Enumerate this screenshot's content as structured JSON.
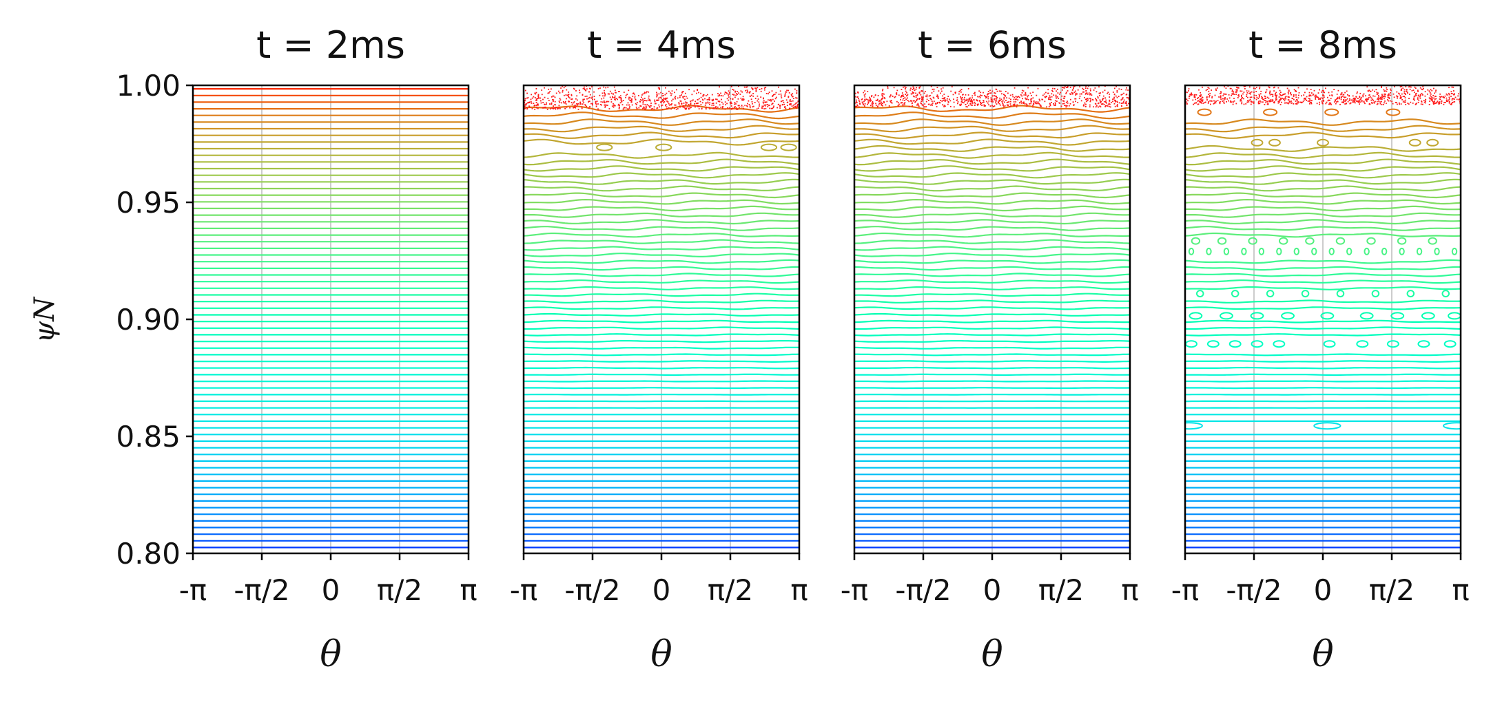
{
  "chart_data": {
    "type": "poincare",
    "ylabel": "ψN",
    "ylim": [
      0.8,
      1.0
    ],
    "yticks": [
      "0.80",
      "0.85",
      "0.90",
      "0.95",
      "1.00"
    ],
    "xlabel": "θ",
    "xticks": [
      "-π",
      "-π/2",
      "0",
      "π/2",
      "π"
    ],
    "colormap": "rainbow",
    "grid": "vertical",
    "grid_color": "#cccccc",
    "panels": [
      {
        "title": "t = 2ms",
        "surfaces": 70,
        "chaos_above": null,
        "islands": []
      },
      {
        "title": "t = 4ms",
        "surfaces": 70,
        "chaos_above": 0.99,
        "islands": [
          {
            "psi": 0.9735,
            "thetas": [
              -1.3,
              0.05,
              2.45,
              2.9
            ],
            "width": 0.35
          }
        ]
      },
      {
        "title": "t = 6ms",
        "surfaces": 70,
        "chaos_above": 0.991,
        "islands": []
      },
      {
        "title": "t = 8ms",
        "surfaces": 70,
        "chaos_above": 0.992,
        "islands": [
          {
            "psi": 0.9885,
            "thetas": [
              -2.7,
              -1.2,
              0.2,
              1.6
            ],
            "width": 0.3
          },
          {
            "psi": 0.9755,
            "thetas": [
              -1.5,
              -1.1,
              0.0,
              2.1,
              2.5
            ],
            "width": 0.25
          },
          {
            "psi": 0.9335,
            "thetas": [
              -2.9,
              -2.3,
              -1.6,
              -0.9,
              -0.3,
              0.4,
              1.1,
              1.8,
              2.5
            ],
            "width": 0.18
          },
          {
            "psi": 0.929,
            "thetas": [
              -3.0,
              -2.6,
              -2.2,
              -1.8,
              -1.4,
              -1.0,
              -0.6,
              -0.2,
              0.2,
              0.6,
              1.0,
              1.4,
              1.8,
              2.2,
              2.6,
              3.0
            ],
            "width": 0.1
          },
          {
            "psi": 0.911,
            "thetas": [
              -2.8,
              -2.0,
              -1.2,
              -0.4,
              0.4,
              1.2,
              2.0,
              2.8
            ],
            "width": 0.15
          },
          {
            "psi": 0.9015,
            "thetas": [
              -2.9,
              -2.2,
              -1.5,
              -0.8,
              0.1,
              1.0,
              1.7,
              2.4,
              3.0
            ],
            "width": 0.28
          },
          {
            "psi": 0.8895,
            "thetas": [
              -3.0,
              -2.5,
              -2.0,
              -1.5,
              -1.0,
              0.15,
              0.9,
              1.6,
              2.3,
              2.9
            ],
            "width": 0.25
          },
          {
            "psi": 0.8545,
            "thetas": [
              -3.05,
              0.1,
              3.05
            ],
            "width": 0.6
          }
        ]
      }
    ]
  }
}
